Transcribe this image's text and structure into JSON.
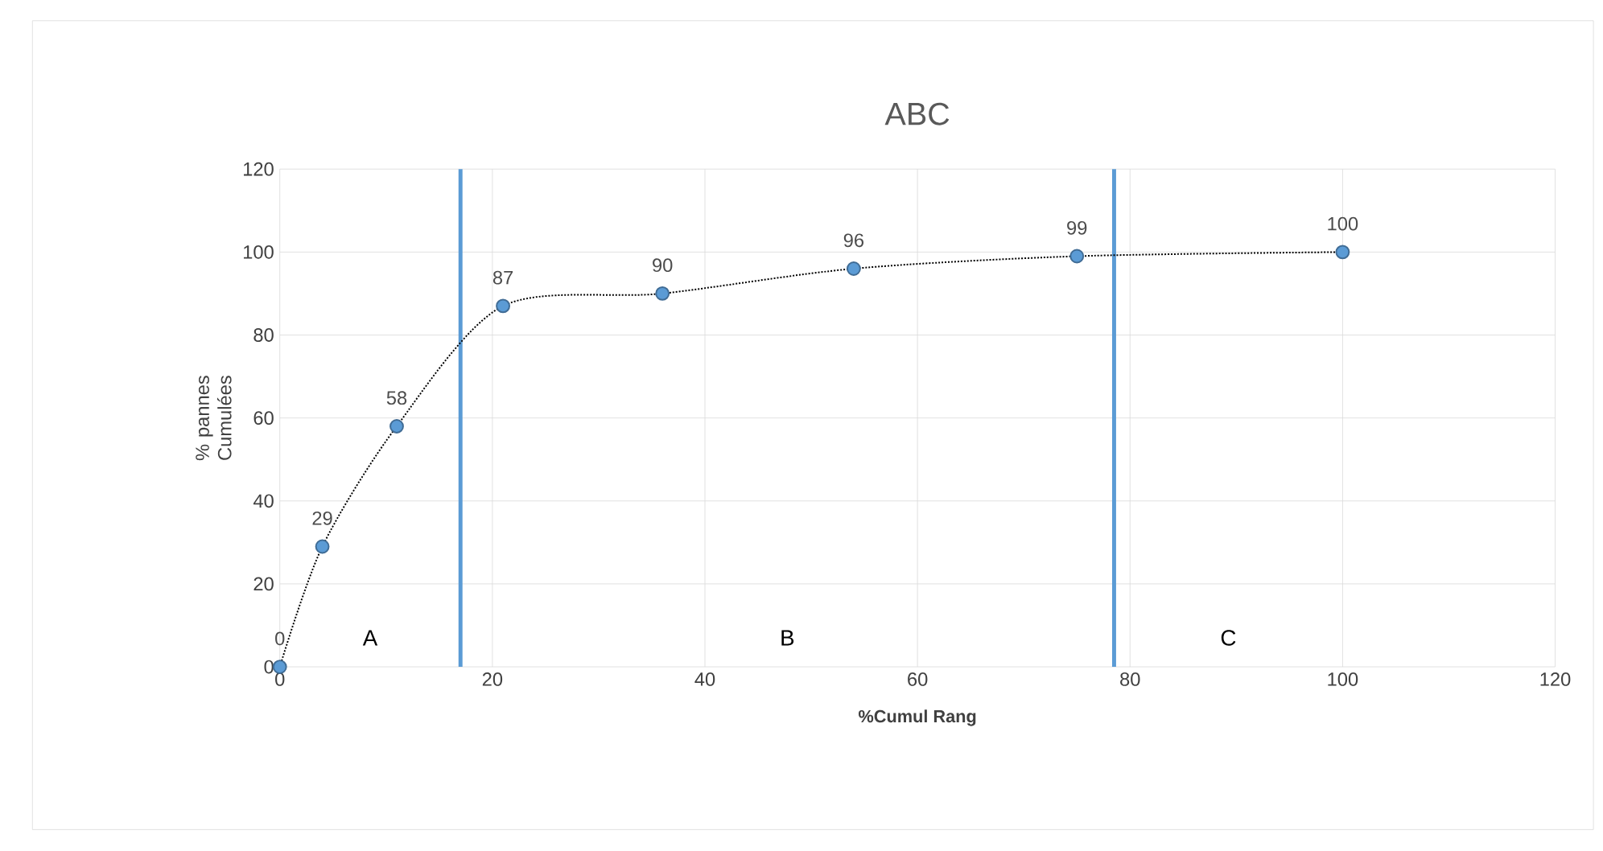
{
  "chart_data": {
    "type": "line",
    "title": "ABC",
    "xlabel": "%Cumul Rang",
    "ylabel": "% pannes Cumulées",
    "series": [
      {
        "x": [
          0,
          4,
          11,
          21,
          36,
          54,
          75,
          100
        ],
        "values": [
          0,
          29,
          58,
          87,
          90,
          96,
          99,
          100
        ],
        "color": "#5b9bd5"
      }
    ],
    "xlim": [
      0,
      120
    ],
    "ylim": [
      0,
      120
    ],
    "xticks": [
      0,
      20,
      40,
      60,
      80,
      100,
      120
    ],
    "yticks": [
      0,
      20,
      40,
      60,
      80,
      100,
      120
    ],
    "grid": true,
    "marker": "circle",
    "line_style": "dotted",
    "data_labels": true,
    "ref_lines": [
      {
        "axis": "x",
        "value": 17,
        "color": "#5b9bd5"
      },
      {
        "axis": "x",
        "value": 78.5,
        "color": "#5b9bd5"
      }
    ],
    "annotations": [
      "A",
      "B",
      "C"
    ]
  }
}
